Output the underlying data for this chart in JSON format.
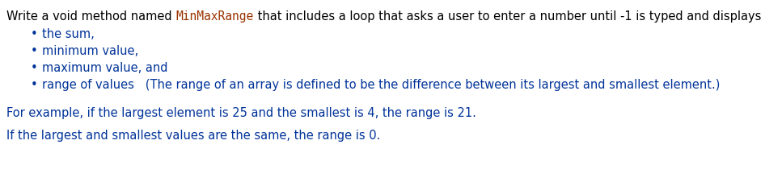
{
  "bg_color": "#ffffff",
  "black": "#000000",
  "blue": "#003399",
  "red_code": "#993300",
  "font_size": 10.5,
  "figsize": [
    9.67,
    2.31
  ],
  "dpi": 100,
  "line1_parts": [
    {
      "text": "Write a void method named ",
      "color": "#000000",
      "mono": false
    },
    {
      "text": "MinMaxRange",
      "color": "#993300",
      "mono": true
    },
    {
      "text": " that includes a loop that asks a user to enter a number until -1 is typed and displays",
      "color": "#000000",
      "mono": false
    }
  ],
  "bullet_items": [
    "the sum,",
    "minimum value,",
    "maximum value, and",
    "range of values   (The range of an array is defined to be the difference between its largest and smallest element.)"
  ],
  "bullet_color": "#003399",
  "example_line": "For example, if the largest element is 25 and the smallest is 4, the range is 21.",
  "last_line": "If the largest and smallest values are the same, the range is 0.",
  "example_color": "#003399"
}
